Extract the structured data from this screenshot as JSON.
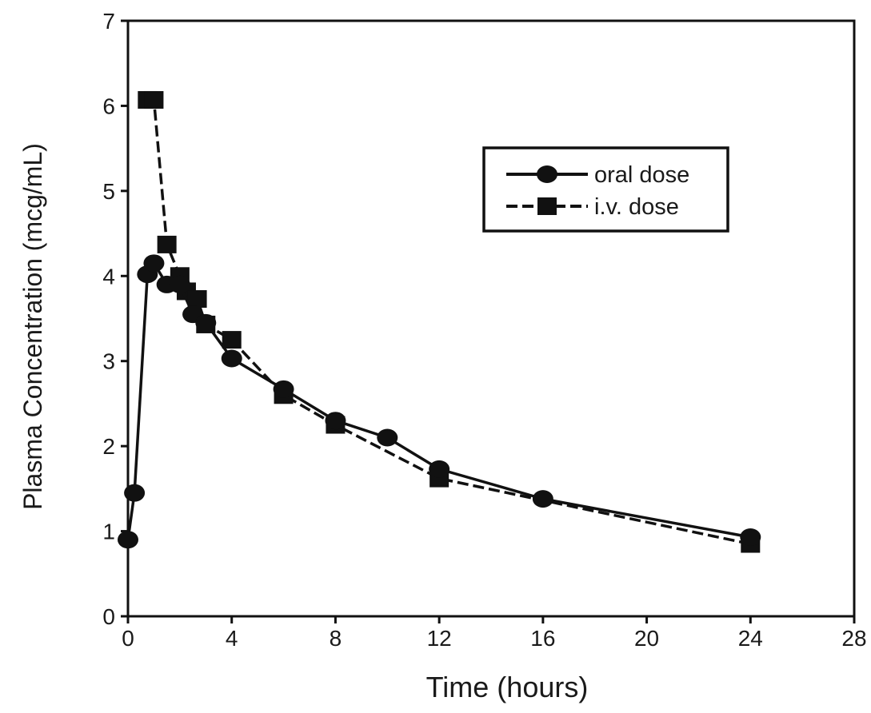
{
  "chart_data": {
    "type": "line",
    "title": "",
    "xlabel": "Time (hours)",
    "ylabel": "Plasma Concentration (mcg/mL)",
    "xlim": [
      0,
      28
    ],
    "ylim": [
      0,
      7
    ],
    "xticks": [
      0,
      4,
      8,
      12,
      16,
      20,
      24,
      28
    ],
    "yticks": [
      0,
      1,
      2,
      3,
      4,
      5,
      6,
      7
    ],
    "grid": false,
    "legend_position": "top-right",
    "series": [
      {
        "name": "oral dose",
        "marker": "circle",
        "line_style": "solid",
        "color": "#111111",
        "x": [
          0,
          0.25,
          0.75,
          1,
          1.5,
          2,
          2.5,
          3,
          4,
          6,
          8,
          10,
          12,
          16,
          24
        ],
        "y": [
          0.9,
          1.45,
          4.02,
          4.15,
          3.9,
          3.9,
          3.55,
          3.45,
          3.03,
          2.67,
          2.3,
          2.1,
          1.73,
          1.38,
          0.93
        ]
      },
      {
        "name": "i.v. dose",
        "marker": "square",
        "line_style": "dashed",
        "color": "#111111",
        "x": [
          0.75,
          1,
          1.5,
          2,
          2.25,
          2.67,
          3,
          4,
          6,
          8,
          12,
          24
        ],
        "y": [
          6.07,
          6.07,
          4.37,
          4.0,
          3.82,
          3.73,
          3.43,
          3.25,
          2.6,
          2.25,
          1.62,
          0.85
        ]
      }
    ]
  }
}
